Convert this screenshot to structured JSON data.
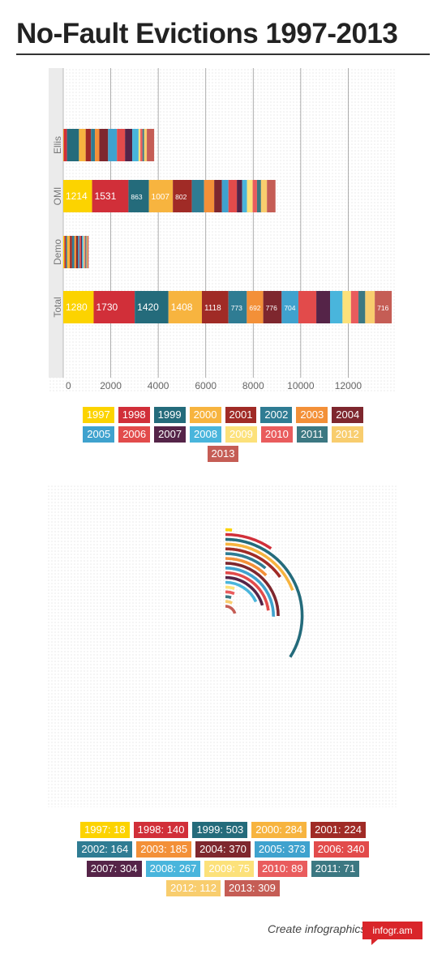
{
  "page": {
    "title": "No-Fault Evictions 1997-2013"
  },
  "footer": {
    "text": "Create infographics",
    "badge": "infogr.am"
  },
  "colors": [
    "#FCD300",
    "#D12F39",
    "#246B7B",
    "#F7B43F",
    "#A02B26",
    "#2F7C93",
    "#F39038",
    "#7E272E",
    "#3FA2CE",
    "#E24B4B",
    "#552448",
    "#49B5DC",
    "#FCE17A",
    "#E95C5D",
    "#3C7882",
    "#F8CD6E",
    "#C55D55"
  ],
  "chart_data": [
    {
      "type": "bar",
      "stacked": true,
      "orientation": "horizontal",
      "categories": [
        "Ellis",
        "OMI",
        "Demo",
        "Total"
      ],
      "xlim": [
        0,
        14000
      ],
      "xticks": [
        0,
        2000,
        4000,
        6000,
        8000,
        10000,
        12000
      ],
      "grid": true,
      "legend_position": "bottom",
      "series": [
        {
          "name": "1997",
          "values": [
            18,
            1214,
            48,
            1280
          ]
        },
        {
          "name": "1998",
          "values": [
            140,
            1531,
            59,
            1730
          ]
        },
        {
          "name": "1999",
          "values": [
            503,
            863,
            54,
            1420
          ]
        },
        {
          "name": "2000",
          "values": [
            284,
            1007,
            117,
            1408
          ]
        },
        {
          "name": "2001",
          "values": [
            224,
            802,
            92,
            1118
          ]
        },
        {
          "name": "2002",
          "values": [
            164,
            514,
            95,
            773
          ]
        },
        {
          "name": "2003",
          "values": [
            185,
            425,
            82,
            692
          ]
        },
        {
          "name": "2004",
          "values": [
            370,
            326,
            80,
            776
          ]
        },
        {
          "name": "2005",
          "values": [
            373,
            274,
            57,
            704
          ]
        },
        {
          "name": "2006",
          "values": [
            340,
            355,
            60,
            755
          ]
        },
        {
          "name": "2007",
          "values": [
            304,
            225,
            49,
            578
          ]
        },
        {
          "name": "2008",
          "values": [
            267,
            200,
            58,
            525
          ]
        },
        {
          "name": "2009",
          "values": [
            75,
            240,
            42,
            357
          ]
        },
        {
          "name": "2010",
          "values": [
            89,
            183,
            43,
            315
          ]
        },
        {
          "name": "2011",
          "values": [
            71,
            168,
            45,
            284
          ]
        },
        {
          "name": "2012",
          "values": [
            112,
            250,
            40,
            402
          ]
        },
        {
          "name": "2013",
          "values": [
            309,
            360,
            47,
            716
          ]
        }
      ],
      "data_labels": {
        "OMI": [
          "1214",
          "1531",
          "863",
          "1007",
          "802"
        ],
        "Total": [
          "1280",
          "1730",
          "1420",
          "1408",
          "1118",
          "773",
          "692",
          "776",
          "704",
          "",
          "",
          "",
          "",
          "",
          "",
          "",
          "716"
        ]
      }
    },
    {
      "type": "pie",
      "variant": "radial-arcs",
      "legend_position": "bottom",
      "slices": [
        {
          "label": "1997",
          "value": 18
        },
        {
          "label": "1998",
          "value": 140
        },
        {
          "label": "1999",
          "value": 503
        },
        {
          "label": "2000",
          "value": 284
        },
        {
          "label": "2001",
          "value": 224
        },
        {
          "label": "2002",
          "value": 164
        },
        {
          "label": "2003",
          "value": 185
        },
        {
          "label": "2004",
          "value": 370
        },
        {
          "label": "2005",
          "value": 373
        },
        {
          "label": "2006",
          "value": 340
        },
        {
          "label": "2007",
          "value": 304
        },
        {
          "label": "2008",
          "value": 267
        },
        {
          "label": "2009",
          "value": 75
        },
        {
          "label": "2010",
          "value": 89
        },
        {
          "label": "2011",
          "value": 71
        },
        {
          "label": "2012",
          "value": 112
        },
        {
          "label": "2013",
          "value": 309
        }
      ],
      "legend_labels": [
        "1997: 18",
        "1998: 140",
        "1999: 503",
        "2000: 284",
        "2001: 224",
        "2002: 164",
        "2003: 185",
        "2004: 370",
        "2005: 373",
        "2006: 340",
        "2007: 304",
        "2008: 267",
        "2009: 75",
        "2010: 89",
        "2011: 71",
        "2012: 112",
        "2013: 309"
      ]
    }
  ]
}
